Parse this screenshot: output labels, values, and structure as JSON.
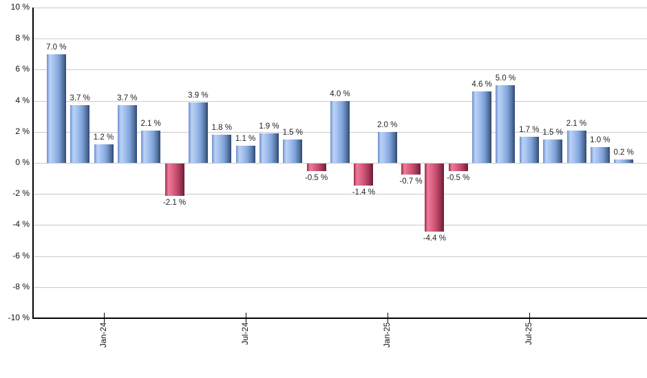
{
  "chart_data": {
    "type": "bar",
    "title": "",
    "xlabel": "",
    "ylabel": "",
    "ylim": [
      -10,
      10
    ],
    "grid": true,
    "legend": "none",
    "bar_count": 25,
    "values": [
      7.0,
      3.7,
      1.2,
      3.7,
      2.1,
      -2.1,
      3.9,
      1.8,
      1.1,
      1.9,
      1.5,
      -0.5,
      4.0,
      -1.4,
      2.0,
      -0.7,
      -4.4,
      -0.5,
      4.6,
      5.0,
      1.7,
      1.5,
      2.1,
      1.0,
      0.2
    ],
    "value_labels": [
      "7.0 %",
      "3.7 %",
      "1.2 %",
      "3.7 %",
      "2.1 %",
      "-2.1 %",
      "3.9 %",
      "1.8 %",
      "1.1 %",
      "1.9 %",
      "1.5 %",
      "-0.5 %",
      "4.0 %",
      "-1.4 %",
      "2.0 %",
      "-0.7 %",
      "-4.4 %",
      "-0.5 %",
      "4.6 %",
      "5.0 %",
      "1.7 %",
      "1.5 %",
      "2.1 %",
      "1.0 %",
      "0.2 %"
    ],
    "y_tick_labels": [
      "10 %",
      "8 %",
      "6 %",
      "4 %",
      "2 %",
      "0 %",
      "-2 %",
      "-4 %",
      "-6 %",
      "-8 %",
      "-10 %"
    ],
    "x_ticks": [
      {
        "label": "Jan-24",
        "bar_index": 2
      },
      {
        "label": "Jul-24",
        "bar_index": 8
      },
      {
        "label": "Jan-25",
        "bar_index": 14
      },
      {
        "label": "Jul-25",
        "bar_index": 20
      }
    ],
    "colors": {
      "positive_bar_edge": "#6a8fcf",
      "positive_bar_light": "#bcd2f5",
      "positive_bar_dark": "#2f4876",
      "negative_bar_edge": "#992a4b",
      "negative_bar_light": "#ee7c9b",
      "negative_bar_dark": "#6d1b35",
      "gridline": "#c9c9c9",
      "axis": "#000000",
      "label_text": "#1f1f1f"
    }
  }
}
